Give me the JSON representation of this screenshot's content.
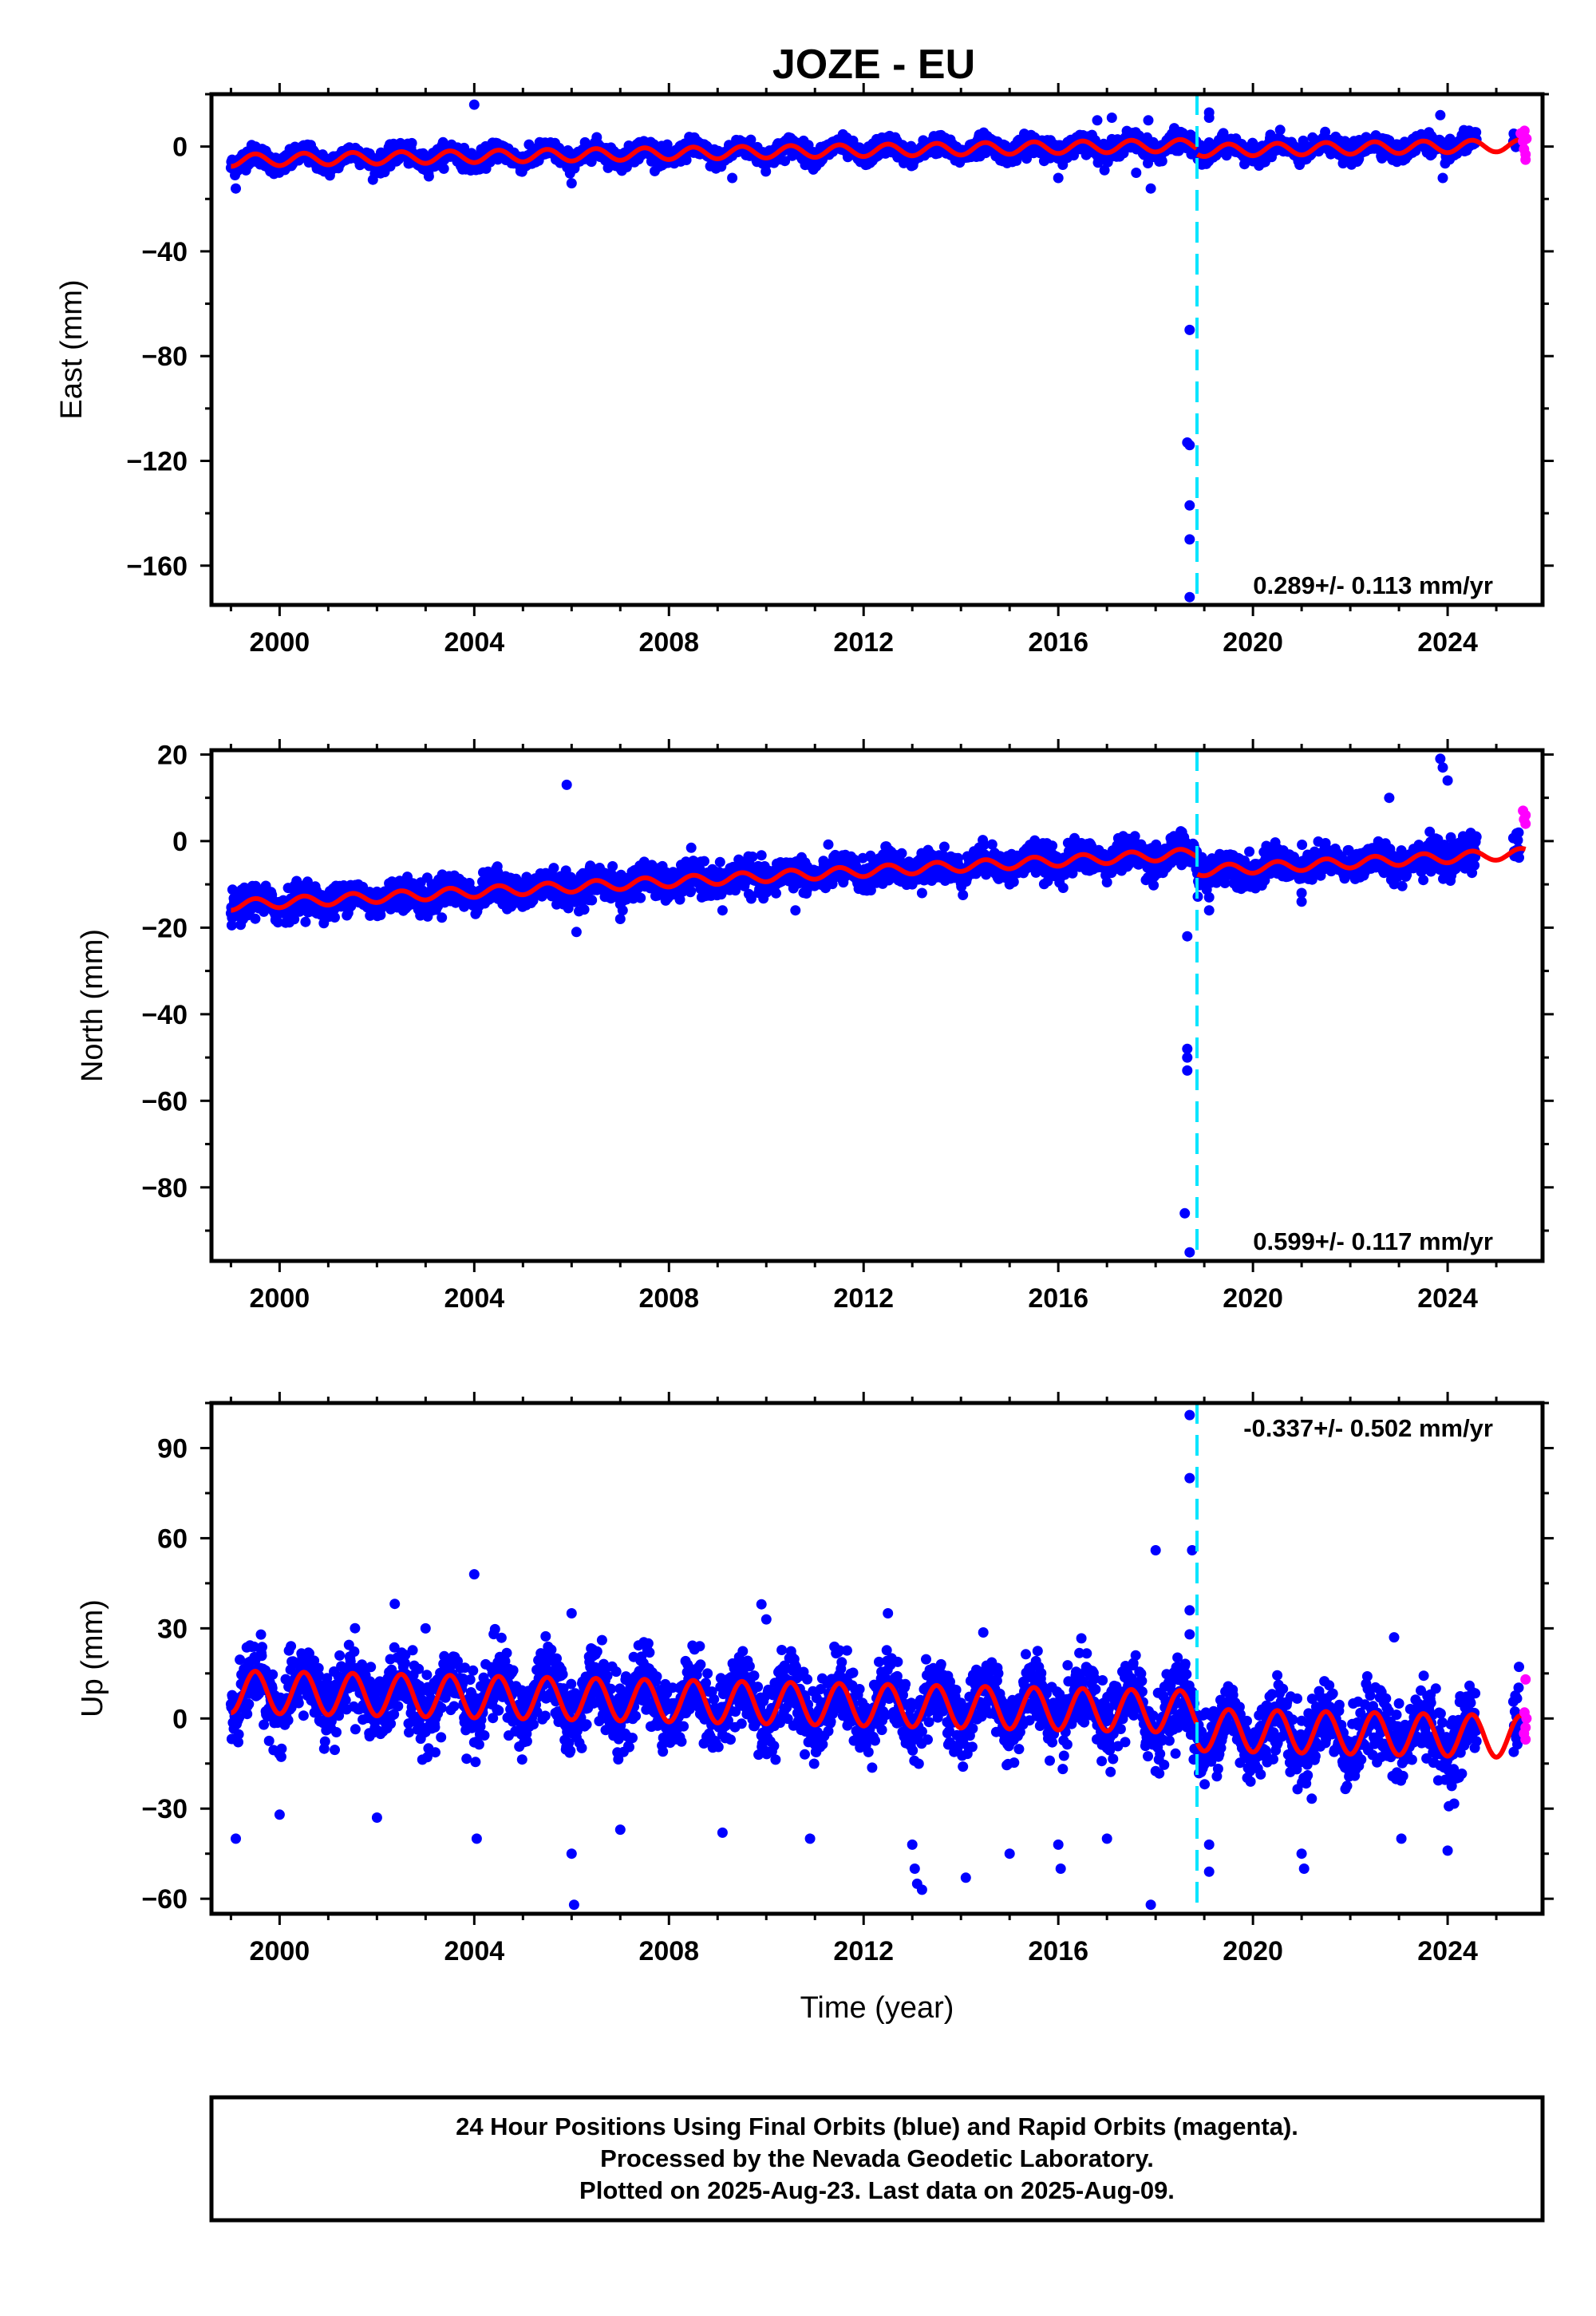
{
  "title": "JOZE - EU",
  "colors": {
    "final_orbits": "#0000ff",
    "rapid_orbits": "#ff00ff",
    "model_fit": "#ff0000",
    "equipment_change": "#00e5ff",
    "frame": "#000000"
  },
  "chart_data": [
    {
      "type": "scatter",
      "name": "East",
      "ylabel": "East (mm)",
      "xlabel": "",
      "xlim": [
        1998.6,
        2025.95
      ],
      "ylim": [
        -175,
        20
      ],
      "xticks": [
        2000,
        2004,
        2008,
        2012,
        2016,
        2020,
        2024
      ],
      "xtick_labels": [
        "2000",
        "2004",
        "2008",
        "2012",
        "2016",
        "2020",
        "2024"
      ],
      "yticks": [
        0,
        -40,
        -80,
        -120,
        -160
      ],
      "ytick_labels": [
        "0",
        "−40",
        "−80",
        "−120",
        "−160"
      ],
      "grid": false,
      "rate_label": "0.289+/- 0.113 mm/yr",
      "rate_label_position": "bottom-right",
      "offset_epochs": [
        2018.85
      ],
      "model": {
        "intercept_mm": -1.5,
        "rate_mm_per_yr": 0.289,
        "annual_amplitude_mm": 2.3,
        "offsets_mm": [
          -2.0
        ]
      },
      "scatter_sd_mm": 1.8,
      "outliers": [
        {
          "x": 1999.1,
          "y": -16
        },
        {
          "x": 2004.0,
          "y": 16
        },
        {
          "x": 2006.0,
          "y": -14
        },
        {
          "x": 2009.3,
          "y": -12
        },
        {
          "x": 2016.0,
          "y": -12
        },
        {
          "x": 2016.8,
          "y": 10
        },
        {
          "x": 2017.1,
          "y": 11
        },
        {
          "x": 2017.6,
          "y": -10
        },
        {
          "x": 2017.85,
          "y": 10
        },
        {
          "x": 2017.9,
          "y": -16
        },
        {
          "x": 2018.7,
          "y": -70
        },
        {
          "x": 2018.65,
          "y": -113
        },
        {
          "x": 2018.7,
          "y": -114
        },
        {
          "x": 2018.7,
          "y": -137
        },
        {
          "x": 2018.7,
          "y": -150
        },
        {
          "x": 2018.7,
          "y": -172
        },
        {
          "x": 2019.1,
          "y": 13
        },
        {
          "x": 2019.1,
          "y": 11
        },
        {
          "x": 2023.85,
          "y": 12
        },
        {
          "x": 2023.9,
          "y": -12
        }
      ],
      "rapid_points": [
        {
          "x": 2025.5,
          "y": 5
        },
        {
          "x": 2025.55,
          "y": 2
        },
        {
          "x": 2025.57,
          "y": -1
        },
        {
          "x": 2025.6,
          "y": -3
        },
        {
          "x": 2025.6,
          "y": -5
        },
        {
          "x": 2025.62,
          "y": 3
        },
        {
          "x": 2025.58,
          "y": 6
        }
      ]
    },
    {
      "type": "scatter",
      "name": "North",
      "ylabel": "North (mm)",
      "xlabel": "",
      "xlim": [
        1998.6,
        2025.95
      ],
      "ylim": [
        -97,
        21
      ],
      "xticks": [
        2000,
        2004,
        2008,
        2012,
        2016,
        2020,
        2024
      ],
      "xtick_labels": [
        "2000",
        "2004",
        "2008",
        "2012",
        "2016",
        "2020",
        "2024"
      ],
      "yticks": [
        20,
        0,
        -20,
        -40,
        -60,
        -80
      ],
      "ytick_labels": [
        "20",
        "0",
        "−20",
        "−40",
        "−60",
        "−80"
      ],
      "grid": false,
      "rate_label": "0.599+/- 0.117 mm/yr",
      "rate_label_position": "bottom-right",
      "offset_epochs": [
        2018.85
      ],
      "model": {
        "intercept_mm": -7.0,
        "rate_mm_per_yr": 0.599,
        "annual_amplitude_mm": 1.2,
        "offsets_mm": [
          -4.0
        ]
      },
      "scatter_sd_mm": 1.8,
      "outliers": [
        {
          "x": 2005.9,
          "y": 13
        },
        {
          "x": 2006.1,
          "y": -21
        },
        {
          "x": 2007.0,
          "y": -18
        },
        {
          "x": 2007.05,
          "y": -16
        },
        {
          "x": 2009.1,
          "y": -16
        },
        {
          "x": 2010.6,
          "y": -16
        },
        {
          "x": 2013.2,
          "y": -12
        },
        {
          "x": 2017.8,
          "y": -9
        },
        {
          "x": 2018.65,
          "y": -22
        },
        {
          "x": 2018.65,
          "y": -48
        },
        {
          "x": 2018.65,
          "y": -50
        },
        {
          "x": 2018.65,
          "y": -53
        },
        {
          "x": 2018.6,
          "y": -86
        },
        {
          "x": 2018.7,
          "y": -95
        },
        {
          "x": 2019.1,
          "y": -13
        },
        {
          "x": 2019.1,
          "y": -16
        },
        {
          "x": 2021.0,
          "y": -12
        },
        {
          "x": 2021.0,
          "y": -14
        },
        {
          "x": 2022.8,
          "y": 10
        },
        {
          "x": 2023.5,
          "y": -9
        },
        {
          "x": 2023.85,
          "y": 19
        },
        {
          "x": 2023.9,
          "y": 17
        },
        {
          "x": 2024.0,
          "y": 14
        }
      ],
      "rapid_points": [
        {
          "x": 2025.55,
          "y": 7
        },
        {
          "x": 2025.6,
          "y": 6
        },
        {
          "x": 2025.57,
          "y": 5
        },
        {
          "x": 2025.6,
          "y": 4
        }
      ]
    },
    {
      "type": "scatter",
      "name": "Up",
      "ylabel": "Up (mm)",
      "xlabel": "Time (year)",
      "xlim": [
        1998.6,
        2025.95
      ],
      "ylim": [
        -65,
        105
      ],
      "xticks": [
        2000,
        2004,
        2008,
        2012,
        2016,
        2020,
        2024
      ],
      "xtick_labels": [
        "2000",
        "2004",
        "2008",
        "2012",
        "2016",
        "2020",
        "2024"
      ],
      "yticks": [
        90,
        60,
        30,
        0,
        -30,
        -60
      ],
      "ytick_labels": [
        "90",
        "60",
        "30",
        "0",
        "−30",
        "−60"
      ],
      "grid": false,
      "rate_label": "-0.337+/- 0.502 mm/yr",
      "rate_label_position": "top-right",
      "offset_epochs": [
        2018.85
      ],
      "model": {
        "intercept_mm": 4.5,
        "rate_mm_per_yr": -0.337,
        "annual_amplitude_mm": 7.0,
        "offsets_mm": [
          -6.0
        ]
      },
      "scatter_sd_mm": 6.0,
      "outliers": [
        {
          "x": 1999.1,
          "y": -40
        },
        {
          "x": 2000.0,
          "y": -32
        },
        {
          "x": 2002.0,
          "y": -33
        },
        {
          "x": 2003.0,
          "y": 30
        },
        {
          "x": 2004.0,
          "y": 48
        },
        {
          "x": 2004.05,
          "y": -40
        },
        {
          "x": 2006.0,
          "y": 35
        },
        {
          "x": 2006.0,
          "y": -45
        },
        {
          "x": 2006.05,
          "y": -62
        },
        {
          "x": 2007.0,
          "y": -37
        },
        {
          "x": 2009.1,
          "y": -38
        },
        {
          "x": 2009.9,
          "y": 38
        },
        {
          "x": 2010.0,
          "y": 33
        },
        {
          "x": 2010.9,
          "y": -40
        },
        {
          "x": 2012.5,
          "y": 35
        },
        {
          "x": 2013.0,
          "y": -42
        },
        {
          "x": 2013.05,
          "y": -50
        },
        {
          "x": 2013.1,
          "y": -55
        },
        {
          "x": 2013.2,
          "y": -57
        },
        {
          "x": 2014.1,
          "y": -53
        },
        {
          "x": 2015.0,
          "y": -45
        },
        {
          "x": 2016.0,
          "y": -42
        },
        {
          "x": 2016.05,
          "y": -50
        },
        {
          "x": 2017.0,
          "y": -40
        },
        {
          "x": 2017.6,
          "y": 12
        },
        {
          "x": 2017.9,
          "y": -62
        },
        {
          "x": 2018.0,
          "y": 56
        },
        {
          "x": 2018.7,
          "y": 101
        },
        {
          "x": 2018.7,
          "y": 80
        },
        {
          "x": 2018.75,
          "y": 56
        },
        {
          "x": 2018.7,
          "y": 36
        },
        {
          "x": 2018.7,
          "y": 28
        },
        {
          "x": 2019.1,
          "y": -42
        },
        {
          "x": 2019.1,
          "y": -51
        },
        {
          "x": 2021.0,
          "y": -45
        },
        {
          "x": 2021.05,
          "y": -50
        },
        {
          "x": 2022.9,
          "y": 27
        },
        {
          "x": 2023.0,
          "y": 5
        },
        {
          "x": 2023.05,
          "y": -40
        },
        {
          "x": 2024.0,
          "y": -44
        }
      ],
      "rapid_points": [
        {
          "x": 2025.6,
          "y": 13
        },
        {
          "x": 2025.58,
          "y": 2
        },
        {
          "x": 2025.6,
          "y": -3
        },
        {
          "x": 2025.57,
          "y": -5
        },
        {
          "x": 2025.6,
          "y": -7
        },
        {
          "x": 2025.62,
          "y": 0
        }
      ]
    }
  ],
  "footer": {
    "line1": "24 Hour Positions Using Final Orbits (blue) and Rapid Orbits (magenta).",
    "line2": "Processed by the Nevada Geodetic Laboratory.",
    "line3": "Plotted on 2025-Aug-23. Last data on 2025-Aug-09."
  }
}
